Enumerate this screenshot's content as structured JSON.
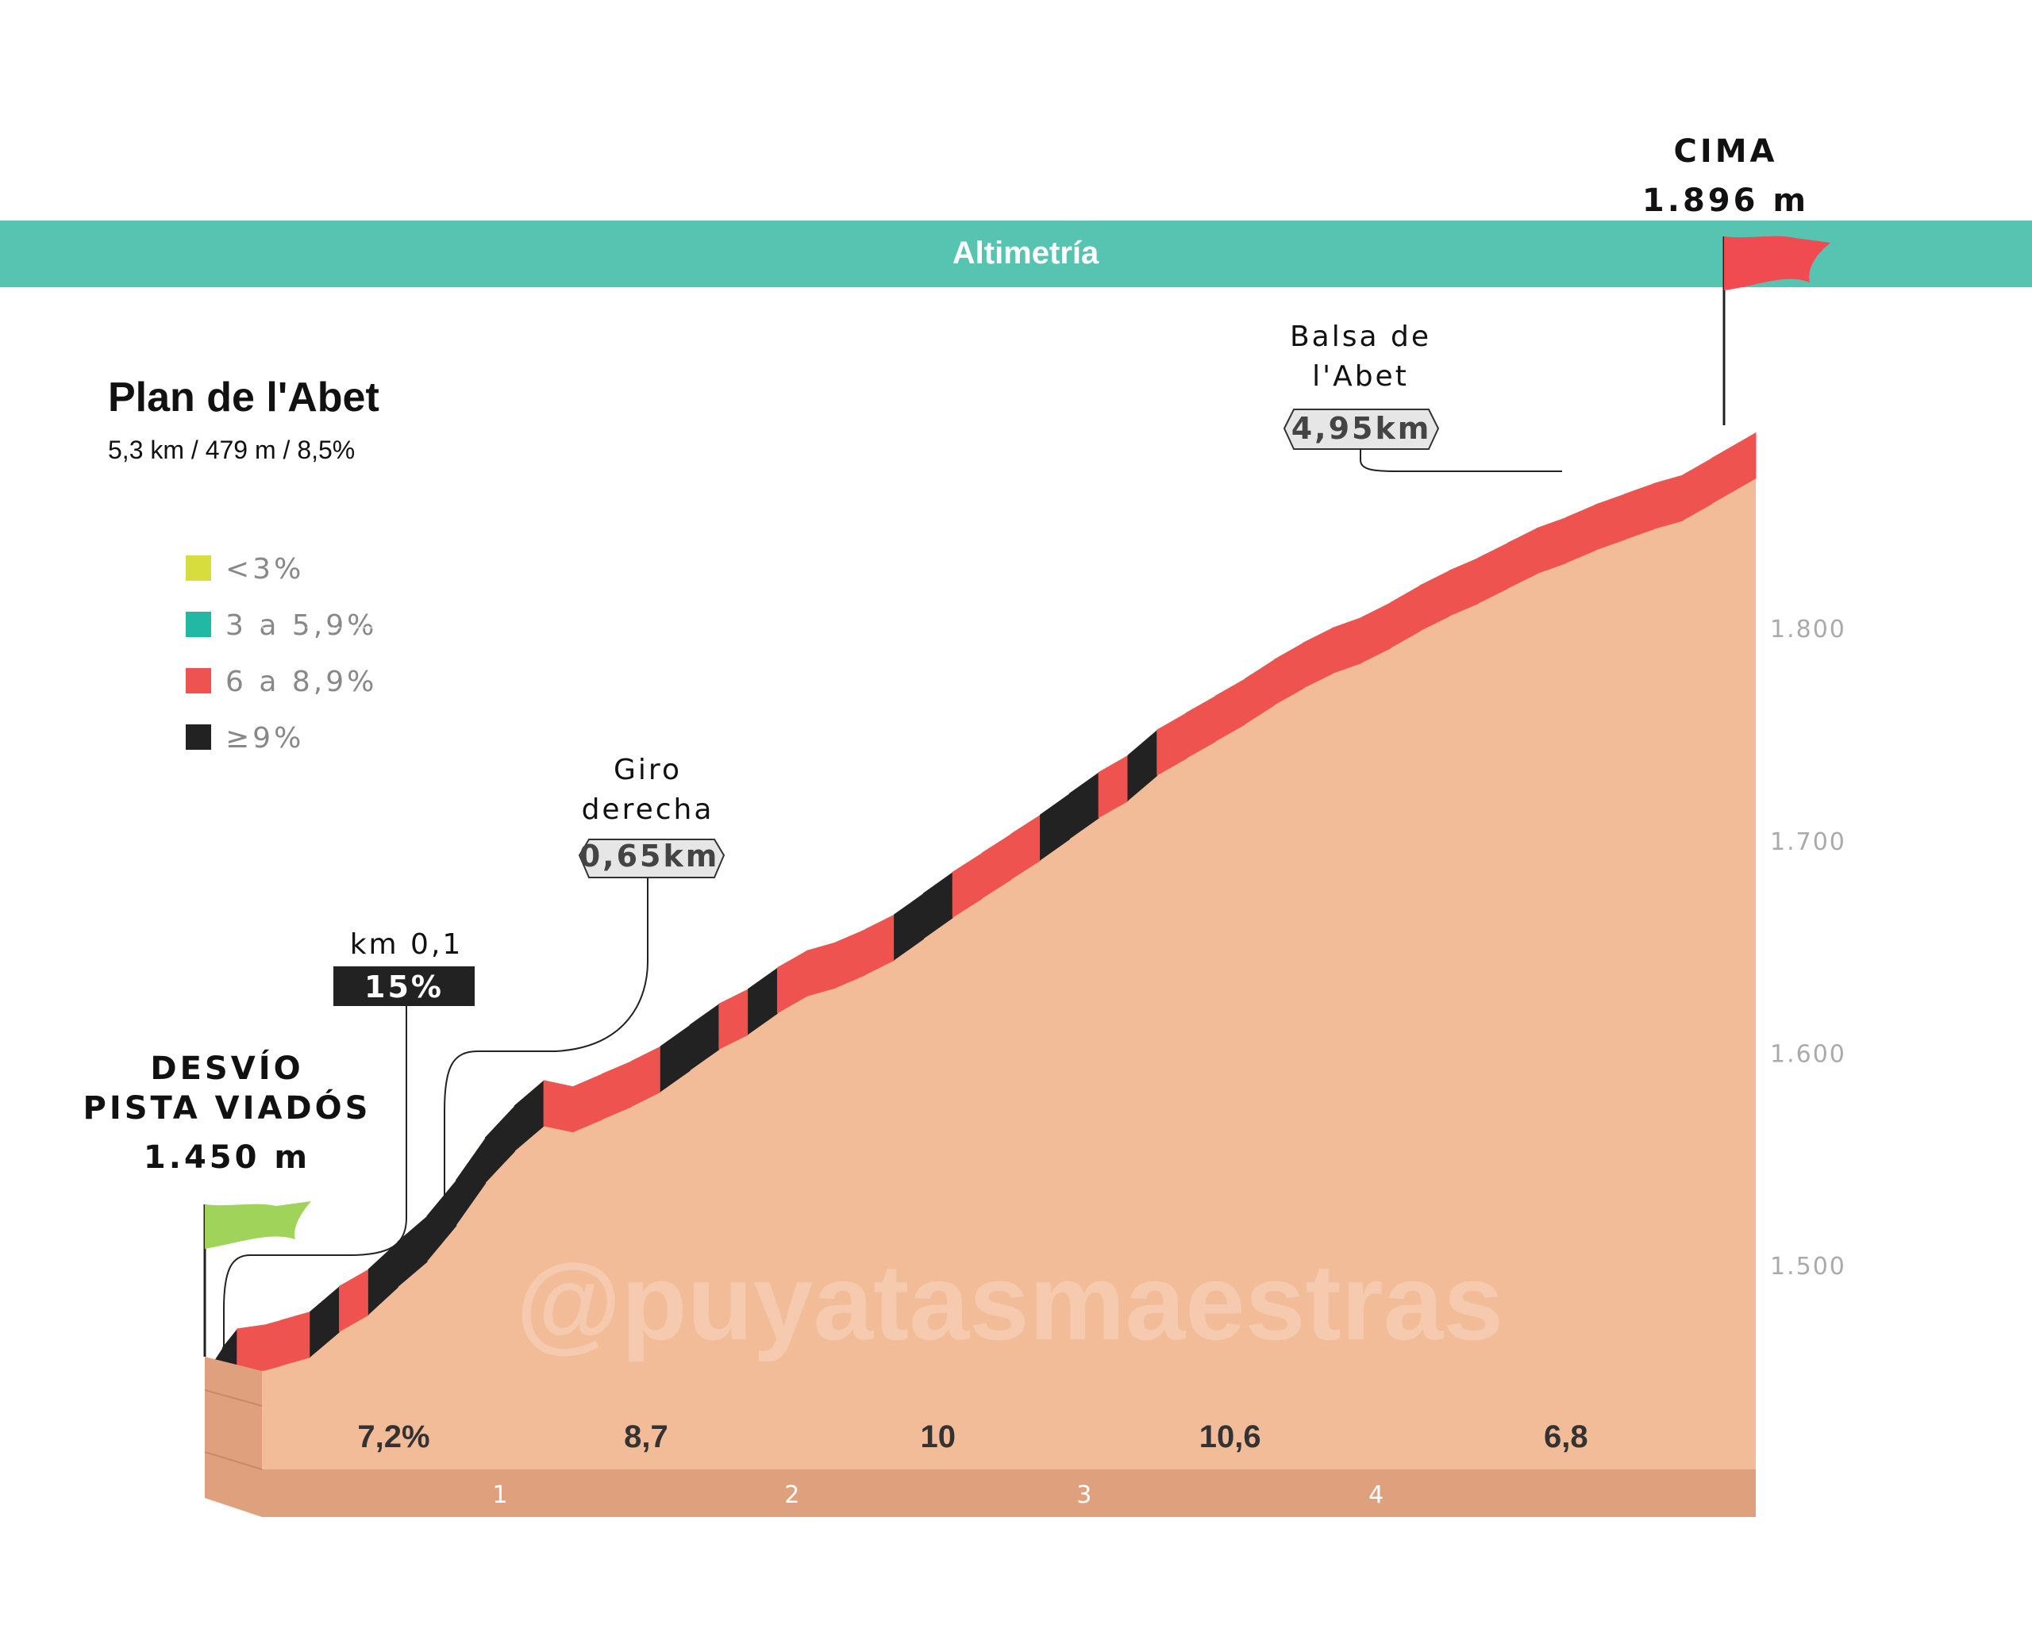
{
  "header": {
    "title": "Altimetría",
    "color": "#57c4b2"
  },
  "climb": {
    "name": "Plan de l'Abet",
    "stats": "5,3 km / 479 m / 8,5%"
  },
  "legend": [
    {
      "label": "<3%",
      "color": "#d6dd3c"
    },
    {
      "label": "3 a 5,9%",
      "color": "#22b9a4"
    },
    {
      "label": "6 a 8,9%",
      "color": "#ef5350"
    },
    {
      "label": "≥9%",
      "color": "#222222"
    }
  ],
  "start": {
    "line1": "DESVÍO",
    "line2": "PISTA VIADÓS",
    "alt": "1.450 m",
    "flag_color": "#9fd35a"
  },
  "summit": {
    "line1": "CIMA",
    "alt": "1.896 m",
    "flag_color": "#ef4b50"
  },
  "annotations": {
    "km01": {
      "title": "km 0,1",
      "value": "15%"
    },
    "giro": {
      "line1": "Giro",
      "line2": "derecha",
      "km": "0,65km"
    },
    "balsa": {
      "line1": "Balsa de",
      "line2": "l'Abet",
      "km": "4,95km"
    }
  },
  "watermark": "@puyatasmaestras",
  "chart_data": {
    "type": "area",
    "x_unit": "km",
    "y_unit": "m",
    "xlim": [
      0,
      5.3
    ],
    "ylim": [
      1400,
      1900
    ],
    "y_ticks": [
      "1.500",
      "1.600",
      "1.700",
      "1.800"
    ],
    "y_tick_values": [
      1500,
      1600,
      1700,
      1800
    ],
    "x_ticks": [
      "1",
      "2",
      "3",
      "4"
    ],
    "x_tick_values": [
      1,
      2,
      3,
      4
    ],
    "segment_gradients": [
      "7,2%",
      "8,7",
      "10",
      "10,6",
      "6,8"
    ],
    "gradient_colors": {
      "6 a 8,9%": "#ef5350",
      "≥9%": "#222222"
    },
    "profile": [
      [
        0.0,
        1450
      ],
      [
        0.05,
        1461
      ],
      [
        0.1,
        1470
      ],
      [
        0.2,
        1472
      ],
      [
        0.25,
        1474
      ],
      [
        0.35,
        1478
      ],
      [
        0.45,
        1490
      ],
      [
        0.55,
        1498
      ],
      [
        0.65,
        1511
      ],
      [
        0.75,
        1523
      ],
      [
        0.85,
        1540
      ],
      [
        0.95,
        1560
      ],
      [
        1.05,
        1575
      ],
      [
        1.15,
        1587
      ],
      [
        1.25,
        1584
      ],
      [
        1.35,
        1590
      ],
      [
        1.45,
        1596
      ],
      [
        1.55,
        1603
      ],
      [
        1.65,
        1613
      ],
      [
        1.75,
        1623
      ],
      [
        1.85,
        1630
      ],
      [
        1.95,
        1640
      ],
      [
        2.05,
        1648
      ],
      [
        2.15,
        1652
      ],
      [
        2.25,
        1658
      ],
      [
        2.35,
        1665
      ],
      [
        2.45,
        1675
      ],
      [
        2.55,
        1685
      ],
      [
        2.65,
        1694
      ],
      [
        2.75,
        1703
      ],
      [
        2.85,
        1712
      ],
      [
        2.95,
        1722
      ],
      [
        3.05,
        1732
      ],
      [
        3.15,
        1740
      ],
      [
        3.25,
        1752
      ],
      [
        3.35,
        1760
      ],
      [
        3.45,
        1768
      ],
      [
        3.55,
        1776
      ],
      [
        3.65,
        1785
      ],
      [
        3.75,
        1793
      ],
      [
        3.85,
        1800
      ],
      [
        3.95,
        1805
      ],
      [
        4.05,
        1812
      ],
      [
        4.15,
        1820
      ],
      [
        4.25,
        1827
      ],
      [
        4.35,
        1833
      ],
      [
        4.45,
        1840
      ],
      [
        4.55,
        1847
      ],
      [
        4.65,
        1852
      ],
      [
        4.75,
        1858
      ],
      [
        4.85,
        1863
      ],
      [
        4.95,
        1868
      ],
      [
        5.05,
        1872
      ],
      [
        5.15,
        1880
      ],
      [
        5.3,
        1892
      ]
    ]
  }
}
